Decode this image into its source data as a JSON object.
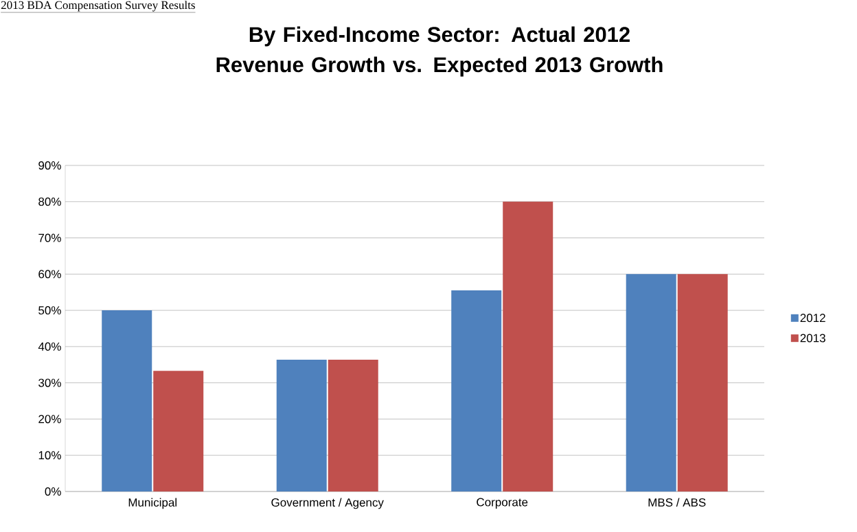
{
  "chart_data": {
    "type": "bar",
    "title": "By Fixed-Income Sector:  Actual 2012 Revenue Growth vs. Expected 2013 Growth",
    "annotations": [
      "2013 BDA Compensation Survey Results"
    ],
    "categories": [
      "Municipal",
      "Government / Agency",
      "Corporate",
      "MBS / ABS"
    ],
    "series": [
      {
        "name": "2012",
        "color": "#4f81bd",
        "values": [
          50,
          36.4,
          55.5,
          60
        ]
      },
      {
        "name": "2013",
        "color": "#c0504d",
        "values": [
          33.3,
          36.4,
          80,
          60
        ]
      }
    ],
    "ylim": [
      0,
      90
    ],
    "yticks": [
      {
        "value": 0,
        "label": "0%"
      },
      {
        "value": 10,
        "label": "10%"
      },
      {
        "value": 20,
        "label": "20%"
      },
      {
        "value": 30,
        "label": "30%"
      },
      {
        "value": 40,
        "label": "40%"
      },
      {
        "value": 50,
        "label": "50%"
      },
      {
        "value": 60,
        "label": "60%"
      },
      {
        "value": 70,
        "label": "70%"
      },
      {
        "value": 80,
        "label": "80%"
      },
      {
        "value": 90,
        "label": "90%"
      }
    ],
    "grid": "y",
    "legend": "right"
  }
}
